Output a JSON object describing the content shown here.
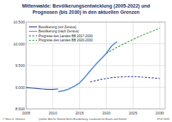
{
  "chart_data": {
    "type": "line",
    "title": "Mittenwalde:  Bevölkerungsentwicklung (2005-2022) und\nPrognosen (bis 2030) in den aktuellen Grenzen",
    "annotations": [
      "© Hans G. Oberlack",
      "Quellen: Amt für Statistik Berlin-Brandenburg, Landesamt für Bauen und Verkehr",
      "29.07.2023"
    ],
    "xlim": [
      2005,
      2031
    ],
    "xticks": [
      2005,
      2010,
      2015,
      2020,
      2025,
      2030
    ],
    "ylim": [
      8500,
      10500
    ],
    "yticks": [
      {
        "value": 8500,
        "label": "8.500"
      },
      {
        "value": 9000,
        "label": "9.000"
      },
      {
        "value": 9500,
        "label": "9.500"
      },
      {
        "value": 10000,
        "label": "10.000"
      },
      {
        "value": 10500,
        "label": "10.500"
      }
    ],
    "grid": true,
    "legend": "top-left",
    "series": [
      {
        "name": "Bevölkerung (vor Zensus)",
        "color": "#1f3f8f",
        "line_style": "solid",
        "x": [
          2005,
          2006,
          2007,
          2008,
          2009,
          2010,
          2011
        ],
        "values": [
          8990,
          8980,
          8970,
          8960,
          8950,
          8950,
          8960
        ]
      },
      {
        "name": "Bevölkerung (nach Zensus)",
        "color": "#5b8fd6",
        "line_style": "solid",
        "x": [
          2011,
          2012,
          2013,
          2014,
          2015,
          2016,
          2017,
          2018,
          2019,
          2020,
          2021,
          2022
        ],
        "values": [
          8900,
          8920,
          8960,
          9020,
          9100,
          9230,
          9380,
          9520,
          9650,
          9780,
          9950,
          10050
        ]
      },
      {
        "name": "Prognose des Landes BB 2017-2030",
        "color": "#3a3a9a",
        "line_style": "dashed",
        "x": [
          2017,
          2018,
          2019,
          2020,
          2021,
          2022,
          2023,
          2024,
          2025,
          2026,
          2027,
          2028,
          2029,
          2030
        ],
        "values": [
          9120,
          9150,
          9180,
          9200,
          9220,
          9230,
          9240,
          9245,
          9245,
          9240,
          9230,
          9220,
          9210,
          9200
        ]
      },
      {
        "name": "Prognose des Landes BB 2020-2030",
        "color": "#2e9a3c",
        "line_style": "dashed",
        "x": [
          2020,
          2021,
          2022,
          2023,
          2024,
          2025,
          2026,
          2027,
          2028,
          2029,
          2030
        ],
        "values": [
          9780,
          9850,
          9920,
          9980,
          10040,
          10100,
          10160,
          10210,
          10260,
          10310,
          10360
        ]
      }
    ]
  }
}
